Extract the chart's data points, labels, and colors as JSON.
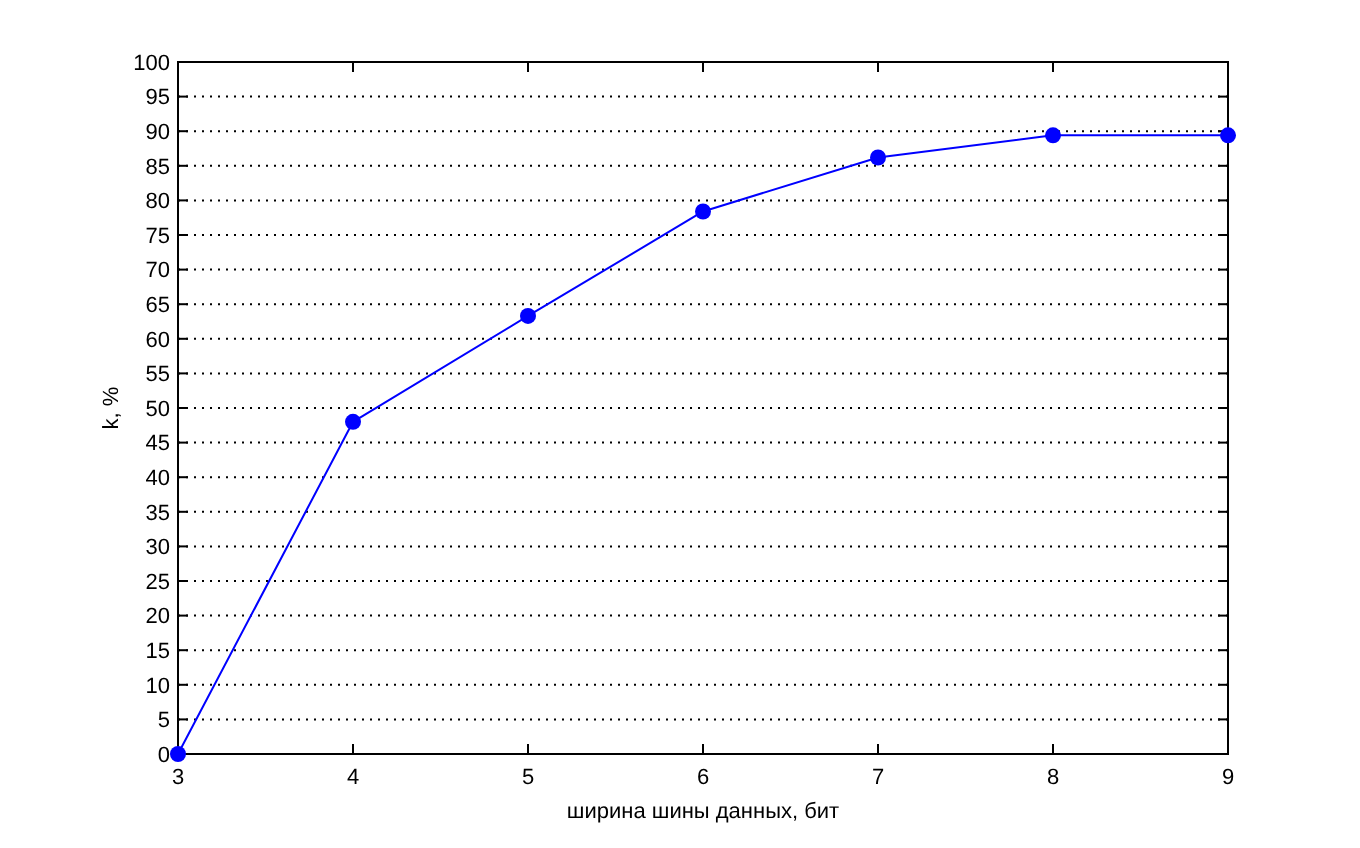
{
  "chart_data": {
    "type": "line",
    "xlabel": "ширина шины данных, бит",
    "ylabel": "k, %",
    "x": [
      3,
      4,
      5,
      6,
      7,
      8,
      9
    ],
    "series": [
      {
        "color": "#0000ff",
        "values": [
          0,
          48,
          63.3,
          78.4,
          86.2,
          89.4,
          89.4
        ]
      }
    ],
    "xlim": [
      3,
      9
    ],
    "xticks": [
      3,
      4,
      5,
      6,
      7,
      8,
      9
    ],
    "ylim": [
      0,
      100
    ],
    "yticks": [
      0,
      5,
      10,
      15,
      20,
      25,
      30,
      35,
      40,
      45,
      50,
      55,
      60,
      65,
      70,
      75,
      80,
      85,
      90,
      95,
      100
    ],
    "grid": "y",
    "marker": "circle",
    "line_style": "solid"
  }
}
